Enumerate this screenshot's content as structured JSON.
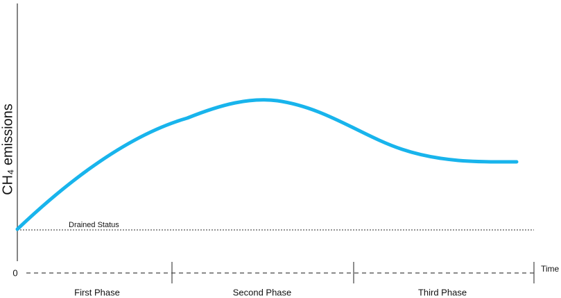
{
  "axis": {
    "y_label": "CH₄ emissions",
    "origin": "0",
    "x_label": "Time"
  },
  "reference": {
    "label": "Drained Status"
  },
  "phases": [
    "First Phase",
    "Second Phase",
    "Third Phase"
  ]
}
